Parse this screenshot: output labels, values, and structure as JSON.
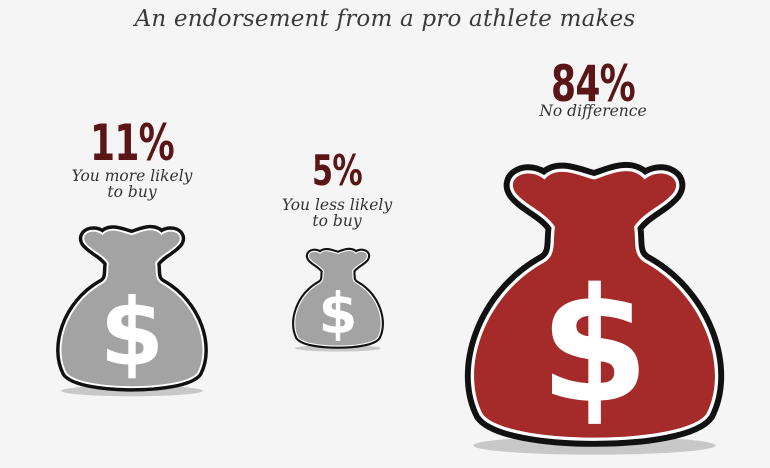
{
  "title": "An endorsement from a pro athlete makes",
  "colors": {
    "neutral_bag": "#a3a3a3",
    "highlight_bag": "#a52a2a",
    "outline": "#111111",
    "percent_text": "#5a1616"
  },
  "icon": "money-bag-icon",
  "chart_data": {
    "type": "pictogram",
    "title": "An endorsement from a pro athlete makes",
    "categories": [
      "You more likely to buy",
      "You less likely to buy",
      "No difference"
    ],
    "values": [
      11,
      5,
      84
    ],
    "unit": "%",
    "items": [
      {
        "percent": "11%",
        "label_lines": [
          "You more likely",
          "to buy"
        ],
        "value": 11,
        "color": "#a3a3a3"
      },
      {
        "percent": "5%",
        "label_lines": [
          "You less likely",
          "to buy"
        ],
        "value": 5,
        "color": "#a3a3a3"
      },
      {
        "percent": "84%",
        "label_lines": [
          "No difference"
        ],
        "value": 84,
        "color": "#a52a2a"
      }
    ]
  }
}
